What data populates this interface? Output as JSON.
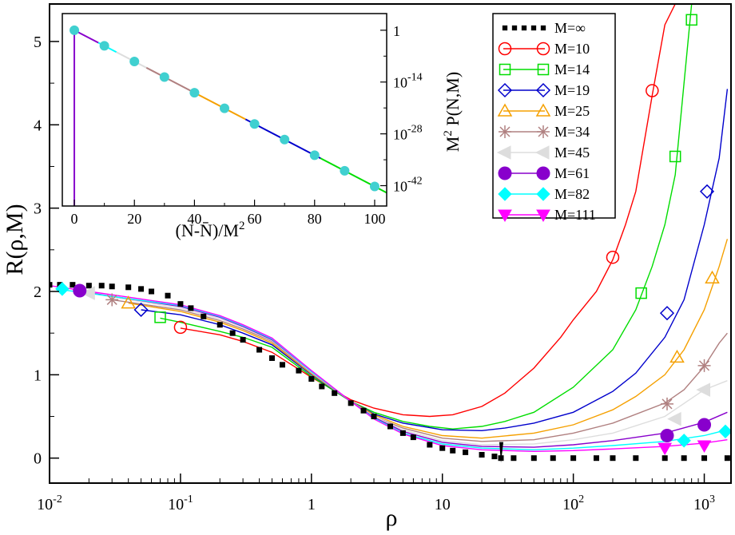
{
  "chart_data": [
    {
      "type": "line",
      "xlabel": "ρ",
      "ylabel": "R(ρ,M)",
      "xscale": "log",
      "xlim": [
        0.01,
        1600
      ],
      "ylim": [
        -0.3,
        5.45
      ],
      "xticks": [
        {
          "value": 0.01,
          "base": "10",
          "exp": "-2"
        },
        {
          "value": 0.1,
          "base": "10",
          "exp": "-1"
        },
        {
          "value": 1,
          "base": "1",
          "exp": ""
        },
        {
          "value": 10,
          "base": "10",
          "exp": ""
        },
        {
          "value": 100,
          "base": "10",
          "exp": "2"
        },
        {
          "value": 1000,
          "base": "10",
          "exp": "3"
        }
      ],
      "yticks": [
        {
          "value": 0,
          "label": "0"
        },
        {
          "value": 1,
          "label": "1"
        },
        {
          "value": 2,
          "label": "2"
        },
        {
          "value": 3,
          "label": "3"
        },
        {
          "value": 4,
          "label": "4"
        },
        {
          "value": 5,
          "label": "5"
        }
      ],
      "legend_position": "top-right",
      "grid": false,
      "series": [
        {
          "name": "M=∞",
          "color": "#000000",
          "marker": "dotted-square",
          "x": [
            0.01,
            0.012,
            0.015,
            0.02,
            0.025,
            0.03,
            0.04,
            0.05,
            0.06,
            0.08,
            0.1,
            0.12,
            0.15,
            0.2,
            0.25,
            0.3,
            0.4,
            0.5,
            0.6,
            0.8,
            1,
            1.2,
            1.5,
            2,
            2.5,
            3,
            4,
            5,
            6,
            8,
            10,
            12,
            15,
            20,
            25,
            28,
            35,
            50,
            70,
            100,
            150,
            200,
            300,
            500,
            700,
            1000,
            1500
          ],
          "y": [
            2.08,
            2.08,
            2.08,
            2.07,
            2.07,
            2.06,
            2.05,
            2.03,
            2.0,
            1.95,
            1.85,
            1.8,
            1.7,
            1.6,
            1.5,
            1.42,
            1.3,
            1.2,
            1.12,
            1.05,
            0.95,
            0.86,
            0.78,
            0.66,
            0.57,
            0.5,
            0.38,
            0.3,
            0.25,
            0.16,
            0.12,
            0.09,
            0.07,
            0.04,
            0.02,
            0.0,
            0.0,
            0.0,
            0.0,
            0.0,
            0.0,
            0.0,
            0.0,
            0.0,
            0.0,
            0.0,
            0.0
          ]
        },
        {
          "name": "M=10",
          "color": "#ff0000",
          "marker": "open-circle",
          "x": [
            0.1,
            0.2,
            0.3,
            0.5,
            1,
            2,
            3,
            5,
            8,
            12,
            20,
            30,
            50,
            80,
            100,
            150,
            200,
            250,
            300,
            400,
            500,
            600
          ],
          "y": [
            1.56,
            1.48,
            1.4,
            1.27,
            0.97,
            0.7,
            0.6,
            0.52,
            0.5,
            0.52,
            0.62,
            0.78,
            1.08,
            1.45,
            1.66,
            2.0,
            2.38,
            2.8,
            3.2,
            4.35,
            5.2,
            5.45
          ],
          "marker_x": [
            0.1,
            200,
            400
          ],
          "marker_y": [
            1.57,
            2.41,
            4.41
          ]
        },
        {
          "name": "M=14",
          "color": "#00dd00",
          "marker": "open-square",
          "x": [
            0.07,
            0.1,
            0.2,
            0.3,
            0.5,
            1,
            2,
            3,
            5,
            8,
            12,
            20,
            30,
            50,
            100,
            200,
            300,
            400,
            500,
            600,
            800
          ],
          "y": [
            1.68,
            1.63,
            1.52,
            1.45,
            1.33,
            0.98,
            0.68,
            0.55,
            0.44,
            0.38,
            0.35,
            0.38,
            0.44,
            0.55,
            0.85,
            1.3,
            1.78,
            2.3,
            2.8,
            3.4,
            5.45
          ],
          "marker_x": [
            0.07,
            330,
            600,
            800
          ],
          "marker_y": [
            1.69,
            1.98,
            3.62,
            5.26
          ]
        },
        {
          "name": "M=19",
          "color": "#0000cc",
          "marker": "open-diamond",
          "x": [
            0.05,
            0.1,
            0.2,
            0.3,
            0.5,
            1,
            2,
            3,
            5,
            10,
            20,
            30,
            50,
            100,
            200,
            300,
            500,
            700,
            1000,
            1300,
            1500
          ],
          "y": [
            1.78,
            1.72,
            1.6,
            1.5,
            1.36,
            1.0,
            0.68,
            0.53,
            0.42,
            0.34,
            0.33,
            0.36,
            0.42,
            0.55,
            0.8,
            1.02,
            1.45,
            1.9,
            2.8,
            3.6,
            4.43
          ],
          "marker_x": [
            0.05,
            520,
            1050
          ],
          "marker_y": [
            1.78,
            1.74,
            3.2
          ]
        },
        {
          "name": "M=25",
          "color": "#f5a000",
          "marker": "open-triangle",
          "x": [
            0.04,
            0.1,
            0.2,
            0.3,
            0.5,
            1,
            2,
            3,
            5,
            10,
            20,
            50,
            100,
            200,
            300,
            500,
            700,
            1000,
            1300,
            1500
          ],
          "y": [
            1.86,
            1.76,
            1.63,
            1.53,
            1.38,
            1.01,
            0.68,
            0.52,
            0.38,
            0.27,
            0.24,
            0.3,
            0.4,
            0.58,
            0.74,
            1.0,
            1.3,
            1.78,
            2.3,
            2.63
          ],
          "marker_x": [
            0.04,
            620,
            1150
          ],
          "marker_y": [
            1.86,
            1.21,
            2.16
          ]
        },
        {
          "name": "M=34",
          "color": "#b08080",
          "marker": "star",
          "x": [
            0.03,
            0.1,
            0.2,
            0.3,
            0.5,
            1,
            2,
            3,
            5,
            10,
            20,
            50,
            100,
            200,
            500,
            700,
            1000,
            1300,
            1500
          ],
          "y": [
            1.9,
            1.78,
            1.65,
            1.55,
            1.4,
            1.02,
            0.68,
            0.5,
            0.36,
            0.24,
            0.2,
            0.22,
            0.3,
            0.42,
            0.66,
            0.82,
            1.1,
            1.38,
            1.5
          ],
          "marker_x": [
            0.03,
            520,
            1000
          ],
          "marker_y": [
            1.9,
            0.65,
            1.11
          ]
        },
        {
          "name": "M=45",
          "color": "#dddddd",
          "marker": "left-triangle",
          "x": [
            0.02,
            0.1,
            0.2,
            0.3,
            0.5,
            1,
            2,
            3,
            5,
            10,
            20,
            50,
            100,
            200,
            500,
            1000,
            1500
          ],
          "y": [
            1.98,
            1.8,
            1.67,
            1.57,
            1.41,
            1.03,
            0.68,
            0.5,
            0.34,
            0.21,
            0.16,
            0.17,
            0.22,
            0.3,
            0.5,
            0.82,
            0.93
          ],
          "marker_x": [
            0.02,
            600,
            1000
          ],
          "marker_y": [
            1.98,
            0.47,
            0.82
          ]
        },
        {
          "name": "M=61",
          "color": "#8800cc",
          "marker": "filled-circle",
          "x": [
            0.017,
            0.1,
            0.2,
            0.3,
            0.5,
            1,
            2,
            3,
            5,
            10,
            20,
            50,
            100,
            200,
            500,
            1000,
            1500
          ],
          "y": [
            2.0,
            1.82,
            1.69,
            1.58,
            1.42,
            1.04,
            0.68,
            0.49,
            0.32,
            0.19,
            0.14,
            0.13,
            0.16,
            0.21,
            0.3,
            0.43,
            0.55
          ],
          "marker_x": [
            0.017,
            520,
            1000
          ],
          "marker_y": [
            2.01,
            0.27,
            0.4
          ]
        },
        {
          "name": "M=82",
          "color": "#00ffff",
          "marker": "filled-diamond",
          "x": [
            0.0125,
            0.1,
            0.2,
            0.3,
            0.5,
            1,
            2,
            3,
            5,
            10,
            20,
            50,
            100,
            200,
            500,
            1000,
            1500
          ],
          "y": [
            2.02,
            1.83,
            1.7,
            1.59,
            1.43,
            1.04,
            0.68,
            0.48,
            0.3,
            0.17,
            0.12,
            0.1,
            0.12,
            0.15,
            0.2,
            0.27,
            0.34
          ],
          "marker_x": [
            0.0125,
            700,
            1450
          ],
          "marker_y": [
            2.03,
            0.21,
            0.32
          ]
        },
        {
          "name": "M=111",
          "color": "#ff00ff",
          "marker": "filled-down-triangle",
          "x": [
            0.01,
            0.1,
            0.2,
            0.3,
            0.5,
            1,
            2,
            3,
            5,
            10,
            20,
            50,
            100,
            200,
            500,
            1000,
            1500
          ],
          "y": [
            2.07,
            1.84,
            1.71,
            1.6,
            1.44,
            1.05,
            0.68,
            0.47,
            0.29,
            0.15,
            0.1,
            0.08,
            0.09,
            0.11,
            0.14,
            0.18,
            0.22
          ],
          "marker_x": [
            500,
            1000
          ],
          "marker_y": [
            0.12,
            0.15
          ]
        }
      ]
    },
    {
      "type": "line",
      "role": "inset",
      "xlabel": "(N-N̄)/M²",
      "ylabel": "M² P(N,M)",
      "xlim": [
        -4,
        104
      ],
      "ylog10lim": [
        -47.5,
        4.5
      ],
      "xticks": [
        0,
        20,
        40,
        60,
        80,
        100
      ],
      "yticks": [
        {
          "value": 0,
          "base": "1",
          "exp": ""
        },
        {
          "value": -14,
          "base": "10",
          "exp": "-14"
        },
        {
          "value": -28,
          "base": "10",
          "exp": "-28"
        },
        {
          "value": -42,
          "base": "10",
          "exp": "-42"
        }
      ],
      "line": {
        "x": [
          0,
          104
        ],
        "log10y": [
          0.0,
          -43.9
        ]
      },
      "drop_line": {
        "x": [
          0,
          0
        ],
        "log10y": [
          -0.2,
          -47.5
        ]
      },
      "segments": [
        {
          "x": [
            0,
            8
          ],
          "color": "#8800cc"
        },
        {
          "x": [
            8,
            14
          ],
          "color": "#00ffff"
        },
        {
          "x": [
            14,
            24
          ],
          "color": "#dddddd"
        },
        {
          "x": [
            24,
            40
          ],
          "color": "#b08080"
        },
        {
          "x": [
            40,
            57
          ],
          "color": "#f5a000"
        },
        {
          "x": [
            57,
            82
          ],
          "color": "#0000cc"
        },
        {
          "x": [
            82,
            104
          ],
          "color": "#00dd00"
        }
      ],
      "markers": {
        "x": [
          0,
          10,
          20,
          30,
          40,
          50,
          60,
          70,
          80,
          90,
          100
        ],
        "color": "#40d0d0"
      }
    }
  ]
}
